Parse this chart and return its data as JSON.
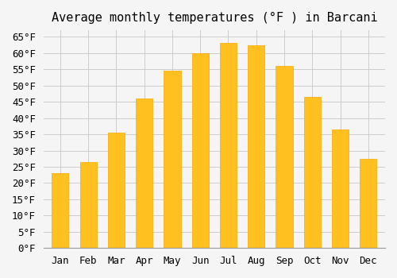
{
  "title": "Average monthly temperatures (°F ) in Barcani",
  "months": [
    "Jan",
    "Feb",
    "Mar",
    "Apr",
    "May",
    "Jun",
    "Jul",
    "Aug",
    "Sep",
    "Oct",
    "Nov",
    "Dec"
  ],
  "values": [
    23,
    26.5,
    35.5,
    46,
    54.5,
    60,
    63,
    62.5,
    56,
    46.5,
    36.5,
    27.5
  ],
  "bar_color": "#FFC020",
  "bar_edge_color": "#FFA500",
  "background_color": "#F5F5F5",
  "grid_color": "#CCCCCC",
  "ylim": [
    0,
    67
  ],
  "yticks": [
    0,
    5,
    10,
    15,
    20,
    25,
    30,
    35,
    40,
    45,
    50,
    55,
    60,
    65
  ],
  "title_fontsize": 11,
  "tick_fontsize": 9,
  "font_family": "monospace"
}
